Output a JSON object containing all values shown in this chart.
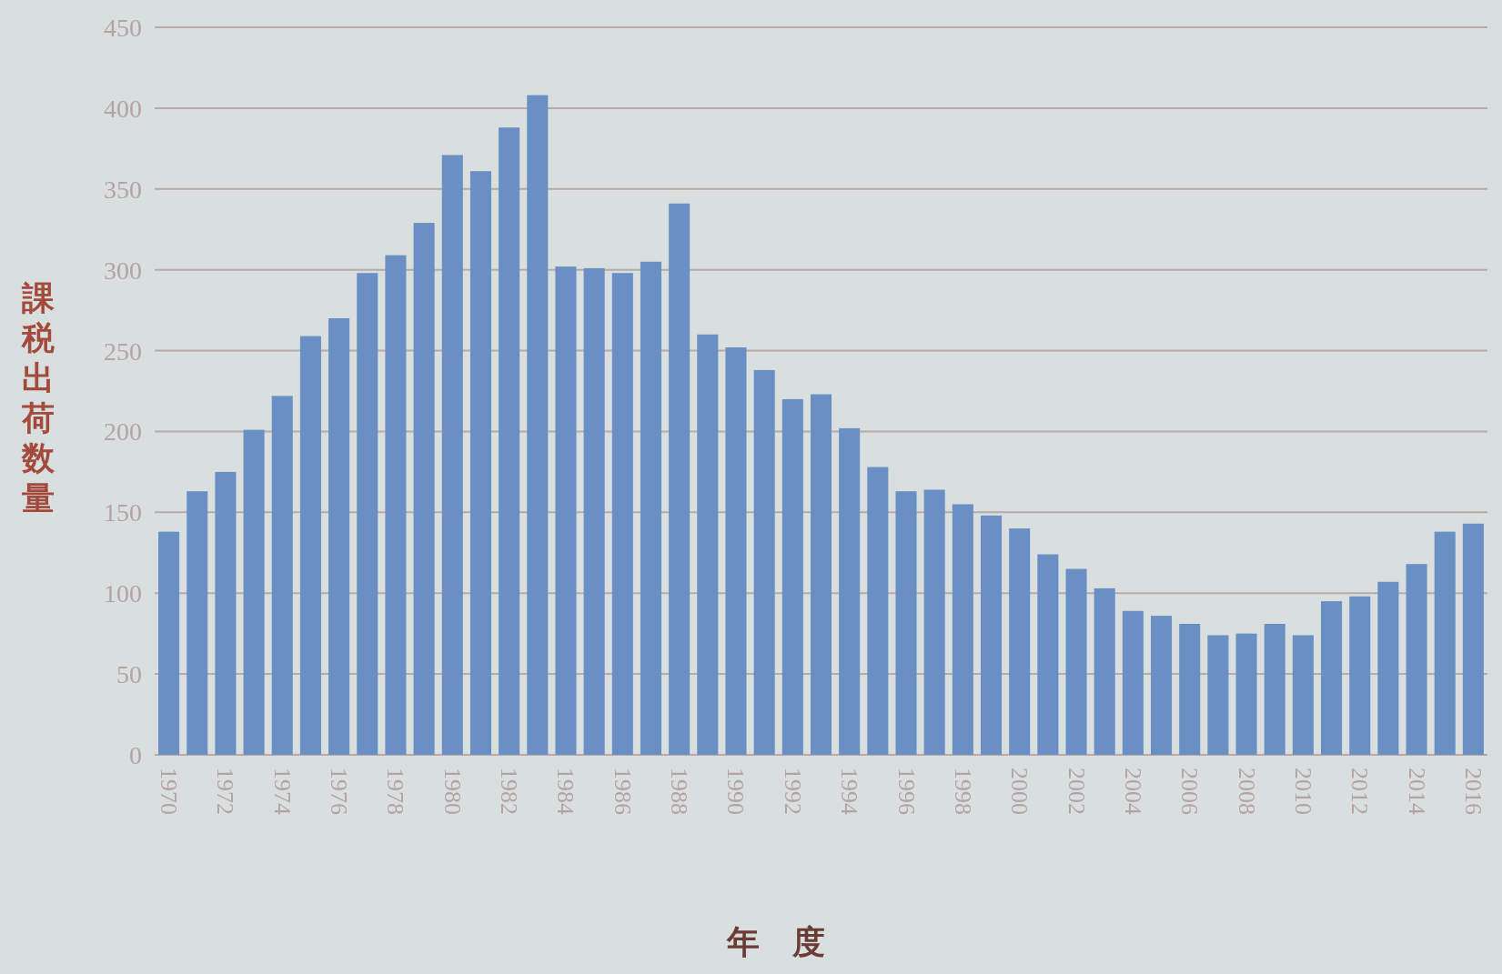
{
  "chart_data": {
    "type": "bar",
    "xlabel": "年　度",
    "ylabel": "課税出荷数量",
    "color": "#6a8fc4",
    "grid": "y",
    "ylim": [
      0,
      450
    ],
    "yticks": [
      0,
      50,
      100,
      150,
      200,
      250,
      300,
      350,
      400,
      450
    ],
    "categories": [
      "1970",
      null,
      "1972",
      null,
      "1974",
      null,
      "1976",
      null,
      "1978",
      null,
      "1980",
      null,
      "1982",
      null,
      "1984",
      null,
      "1986",
      null,
      "1988",
      null,
      "1990",
      null,
      "1992",
      null,
      "1994",
      null,
      "1996",
      null,
      "1998",
      null,
      "2000",
      null,
      "2002",
      null,
      "2004",
      null,
      "2006",
      null,
      "2008",
      null,
      "2010",
      null,
      "2012",
      null,
      "2014",
      null,
      "2016"
    ],
    "values": [
      138,
      163,
      175,
      201,
      222,
      259,
      270,
      298,
      309,
      329,
      371,
      361,
      388,
      408,
      302,
      301,
      298,
      305,
      341,
      260,
      252,
      238,
      220,
      223,
      202,
      178,
      163,
      164,
      155,
      148,
      140,
      124,
      115,
      103,
      89,
      86,
      81,
      74,
      75,
      81,
      74,
      95,
      98,
      107,
      118,
      138,
      143
    ]
  }
}
